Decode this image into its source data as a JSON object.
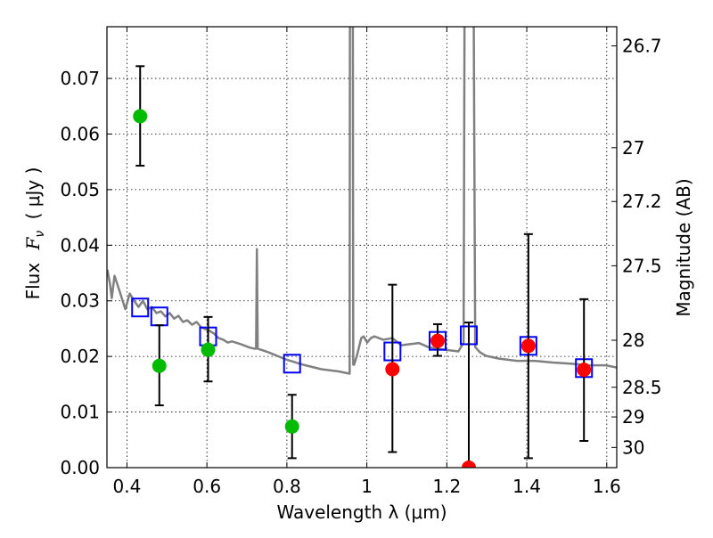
{
  "chart_data": {
    "type": "scatter",
    "title": "",
    "xlabel": "Wavelength  λ (μm)",
    "ylabel": "Flux  F_ν  ( μJy )",
    "ylabel_parts": {
      "flux": "Flux",
      "symbol": "F",
      "sub": "ν",
      "unit": "( μJy )"
    },
    "y2label": "Magnitude (AB)",
    "xlim": [
      0.35,
      1.625
    ],
    "ylim": [
      0,
      0.0793
    ],
    "grid": true,
    "xticks": [
      0.4,
      0.6,
      0.8,
      1,
      1.2,
      1.4,
      1.6
    ],
    "xtick_labels": [
      "0.4",
      "0.6",
      "0.8",
      "1",
      "1.2",
      "1.4",
      "1.6"
    ],
    "yticks": [
      0,
      0.01,
      0.02,
      0.03,
      0.04,
      0.05,
      0.06,
      0.07
    ],
    "ytick_labels": [
      "0.00",
      "0.01",
      "0.02",
      "0.03",
      "0.04",
      "0.05",
      "0.06",
      "0.07"
    ],
    "y2ticks": [
      26.7,
      27,
      27.2,
      27.5,
      28,
      28.5,
      29,
      30
    ],
    "y2tick_labels": [
      "26.7",
      "27",
      "27.2",
      "27.5",
      "28",
      "28.5",
      "29",
      "30"
    ],
    "y2_zeropoint": 23.9,
    "colors": {
      "spectrum": "#808080",
      "green": "#00bb00",
      "red": "#ff0000",
      "model": "#0000ff",
      "err": "#000000"
    },
    "series": [
      {
        "name": "observed-optical",
        "color_key": "green",
        "x": [
          0.433,
          0.481,
          0.603,
          0.813
        ],
        "y": [
          0.0632,
          0.0183,
          0.0212,
          0.0074
        ],
        "err_low": [
          0.0543,
          0.0112,
          0.0155,
          0.0017
        ],
        "err_high": [
          0.0722,
          0.0256,
          0.0271,
          0.0131
        ]
      },
      {
        "name": "observed-nir",
        "color_key": "red",
        "x": [
          1.064,
          1.177,
          1.255,
          1.404,
          1.543
        ],
        "y": [
          0.0177,
          0.0228,
          0.0,
          0.0219,
          0.0176
        ],
        "err_low": [
          0.0028,
          0.0201,
          0.0,
          0.0017,
          0.0048
        ],
        "err_high": [
          0.0329,
          0.0258,
          0.0261,
          0.042,
          0.0303
        ]
      },
      {
        "name": "model-photometry",
        "color_key": "model",
        "x": [
          0.433,
          0.481,
          0.603,
          0.813,
          1.064,
          1.177,
          1.255,
          1.404,
          1.543
        ],
        "y": [
          0.0288,
          0.0272,
          0.0236,
          0.0187,
          0.0209,
          0.0228,
          0.0238,
          0.0219,
          0.0179
        ]
      },
      {
        "name": "model-spectrum",
        "color_key": "spectrum",
        "x": [
          0.351,
          0.358,
          0.362,
          0.369,
          0.38,
          0.396,
          0.407,
          0.418,
          0.429,
          0.44,
          0.451,
          0.462,
          0.474,
          0.485,
          0.496,
          0.507,
          0.518,
          0.529,
          0.54,
          0.551,
          0.563,
          0.574,
          0.585,
          0.596,
          0.607,
          0.618,
          0.629,
          0.641,
          0.652,
          0.663,
          0.685,
          0.707,
          0.718,
          0.723,
          0.725,
          0.727,
          0.752,
          0.796,
          0.841,
          0.886,
          0.93,
          0.957,
          0.959,
          0.963,
          0.966,
          0.968,
          0.975,
          0.986,
          0.992,
          1.001,
          1.01,
          1.019,
          1.041,
          1.064,
          1.086,
          1.108,
          1.131,
          1.153,
          1.175,
          1.197,
          1.229,
          1.242,
          1.249,
          1.26,
          1.271,
          1.282,
          1.298,
          1.331,
          1.375,
          1.42,
          1.465,
          1.509,
          1.554,
          1.598,
          1.625
        ],
        "y": [
          0.0356,
          0.0329,
          0.0305,
          0.0345,
          0.0321,
          0.0285,
          0.0313,
          0.03,
          0.0289,
          0.03,
          0.0285,
          0.0289,
          0.0278,
          0.0281,
          0.0272,
          0.0278,
          0.0268,
          0.0273,
          0.0262,
          0.0265,
          0.0257,
          0.0262,
          0.0253,
          0.0249,
          0.0246,
          0.0241,
          0.0233,
          0.023,
          0.0225,
          0.0227,
          0.0222,
          0.0216,
          0.0214,
          0.0214,
          0.0393,
          0.0214,
          0.0208,
          0.0195,
          0.0185,
          0.0177,
          0.0173,
          0.0169,
          0.2,
          0.2,
          0.0185,
          0.0185,
          0.0201,
          0.0233,
          0.0236,
          0.0225,
          0.0233,
          0.0236,
          0.023,
          0.0233,
          0.022,
          0.0222,
          0.0224,
          0.0217,
          0.0214,
          0.0212,
          0.0209,
          0.0225,
          0.2,
          0.2,
          0.0217,
          0.0208,
          0.0201,
          0.0196,
          0.0192,
          0.0192,
          0.0189,
          0.0187,
          0.0184,
          0.0184,
          0.018
        ]
      }
    ]
  }
}
